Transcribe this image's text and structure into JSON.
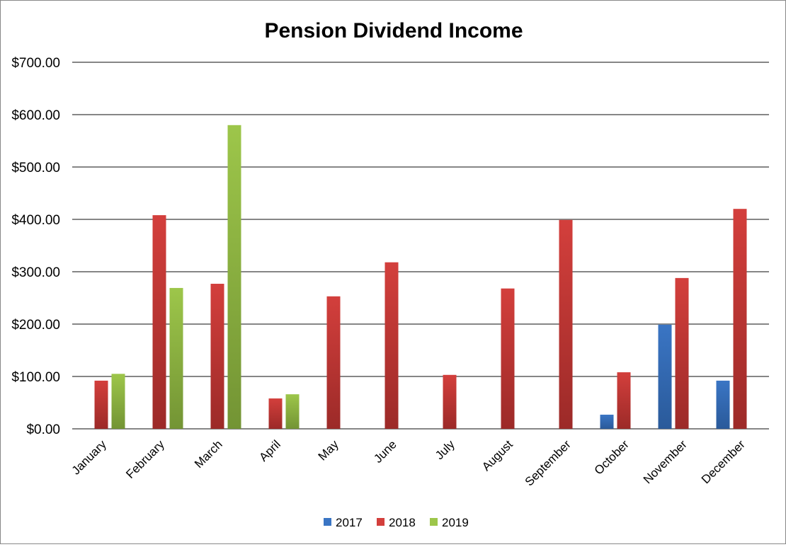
{
  "chart_data": {
    "type": "bar",
    "title": "Pension Dividend Income",
    "xlabel": "",
    "ylabel": "",
    "ylim": [
      0,
      700
    ],
    "yticks": [
      "$0.00",
      "$100.00",
      "$200.00",
      "$300.00",
      "$400.00",
      "$500.00",
      "$600.00",
      "$700.00"
    ],
    "grid": true,
    "legend_position": "bottom",
    "categories": [
      "January",
      "February",
      "March",
      "April",
      "May",
      "June",
      "July",
      "August",
      "September",
      "October",
      "November",
      "December"
    ],
    "series": [
      {
        "name": "2017",
        "color": "#3a75c4",
        "colorDark": "#2a5a9a",
        "values": [
          null,
          null,
          null,
          null,
          null,
          null,
          null,
          null,
          null,
          27,
          199,
          92
        ]
      },
      {
        "name": "2018",
        "color": "#d33f3c",
        "colorDark": "#9c2a28",
        "values": [
          92,
          408,
          277,
          58,
          253,
          318,
          103,
          268,
          399,
          108,
          288,
          420
        ]
      },
      {
        "name": "2019",
        "color": "#9dc64a",
        "colorDark": "#739434",
        "values": [
          105,
          269,
          580,
          66,
          null,
          null,
          null,
          null,
          null,
          null,
          null,
          null
        ]
      }
    ]
  }
}
